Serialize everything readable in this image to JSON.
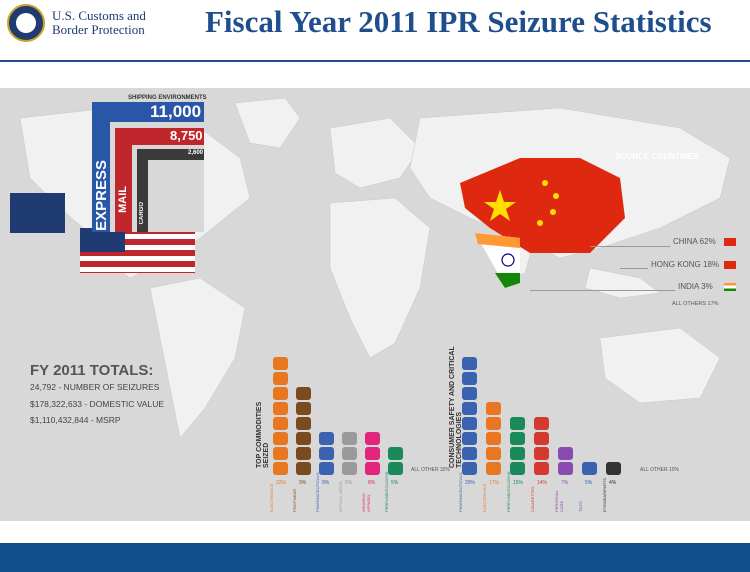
{
  "header": {
    "agency_line1": "U.S. Customs and",
    "agency_line2": "Border Protection",
    "seal_text": "DEPARTMENT OF HOMELAND SECURITY",
    "title": "Fiscal Year 2011 IPR Seizure Statistics"
  },
  "shipping": {
    "label": "SHIPPING ENVIRONMENTS",
    "express_label": "EXPRESS",
    "express_value": "11,000",
    "mail_label": "MAIL",
    "mail_value": "8,750",
    "cargo_label": "CARGO",
    "cargo_value": "2,600"
  },
  "totals": {
    "title": "FY 2011 TOTALS:",
    "seizures": "24,792 - NUMBER OF SEIZURES",
    "domestic_value": "$178,322,633 - DOMESTIC VALUE",
    "msrp": "$1,110,432,844 - MSRP"
  },
  "source": {
    "title": "SOURCE COUNTRIES",
    "china": "CHINA 62%",
    "hong_kong": "HONG KONG 18%",
    "india": "INDIA 3%",
    "others": "ALL OTHERS 17%"
  },
  "commodities": {
    "section_label": "TOP COMMODITIES SEIZED",
    "items": [
      {
        "label": "ELECTRONICS",
        "pct": "22%",
        "color": "#e87722",
        "count": 8
      },
      {
        "label": "FOOTWEAR",
        "pct": "9%",
        "color": "#7a4b1e",
        "count": 6
      },
      {
        "label": "PHARMACEUTICALS",
        "pct": "9%",
        "color": "#3a62b0",
        "count": 3
      },
      {
        "label": "OPTICAL MEDIA",
        "pct": "8%",
        "color": "#9a9a9a",
        "count": 3
      },
      {
        "label": "WEARING APPAREL",
        "pct": "8%",
        "color": "#e0257a",
        "count": 3
      },
      {
        "label": "PERFUME/COLOGNE",
        "pct": "5%",
        "color": "#1a8a5a",
        "count": 2
      }
    ],
    "others": "ALL OTHER 32%"
  },
  "safety": {
    "section_label": "CONSUMER SAFETY AND CRITICAL TECHNOLOGIES",
    "items": [
      {
        "label": "PHARMACEUTICALS",
        "pct": "29%",
        "color": "#3a62b0",
        "count": 8
      },
      {
        "label": "ELECTRONICS",
        "pct": "17%",
        "color": "#e87722",
        "count": 5
      },
      {
        "label": "PERFUME/COLOGNE",
        "pct": "15%",
        "color": "#1a8a5a",
        "count": 4
      },
      {
        "label": "CIGARETTES",
        "pct": "14%",
        "color": "#d4392f",
        "count": 4
      },
      {
        "label": "PERSONAL CARE",
        "pct": "7%",
        "color": "#8a4bb0",
        "count": 2
      },
      {
        "label": "TOYS",
        "pct": "5%",
        "color": "#3a62b0",
        "count": 1
      },
      {
        "label": "EYEWEAR/PARTS",
        "pct": "4%",
        "color": "#333333",
        "count": 1
      }
    ],
    "others": "ALL OTHER 10%"
  },
  "colors": {
    "brand_blue": "#1f4e8c",
    "map_grey": "#d8d8d8",
    "footer_blue": "#0f4e8a"
  }
}
